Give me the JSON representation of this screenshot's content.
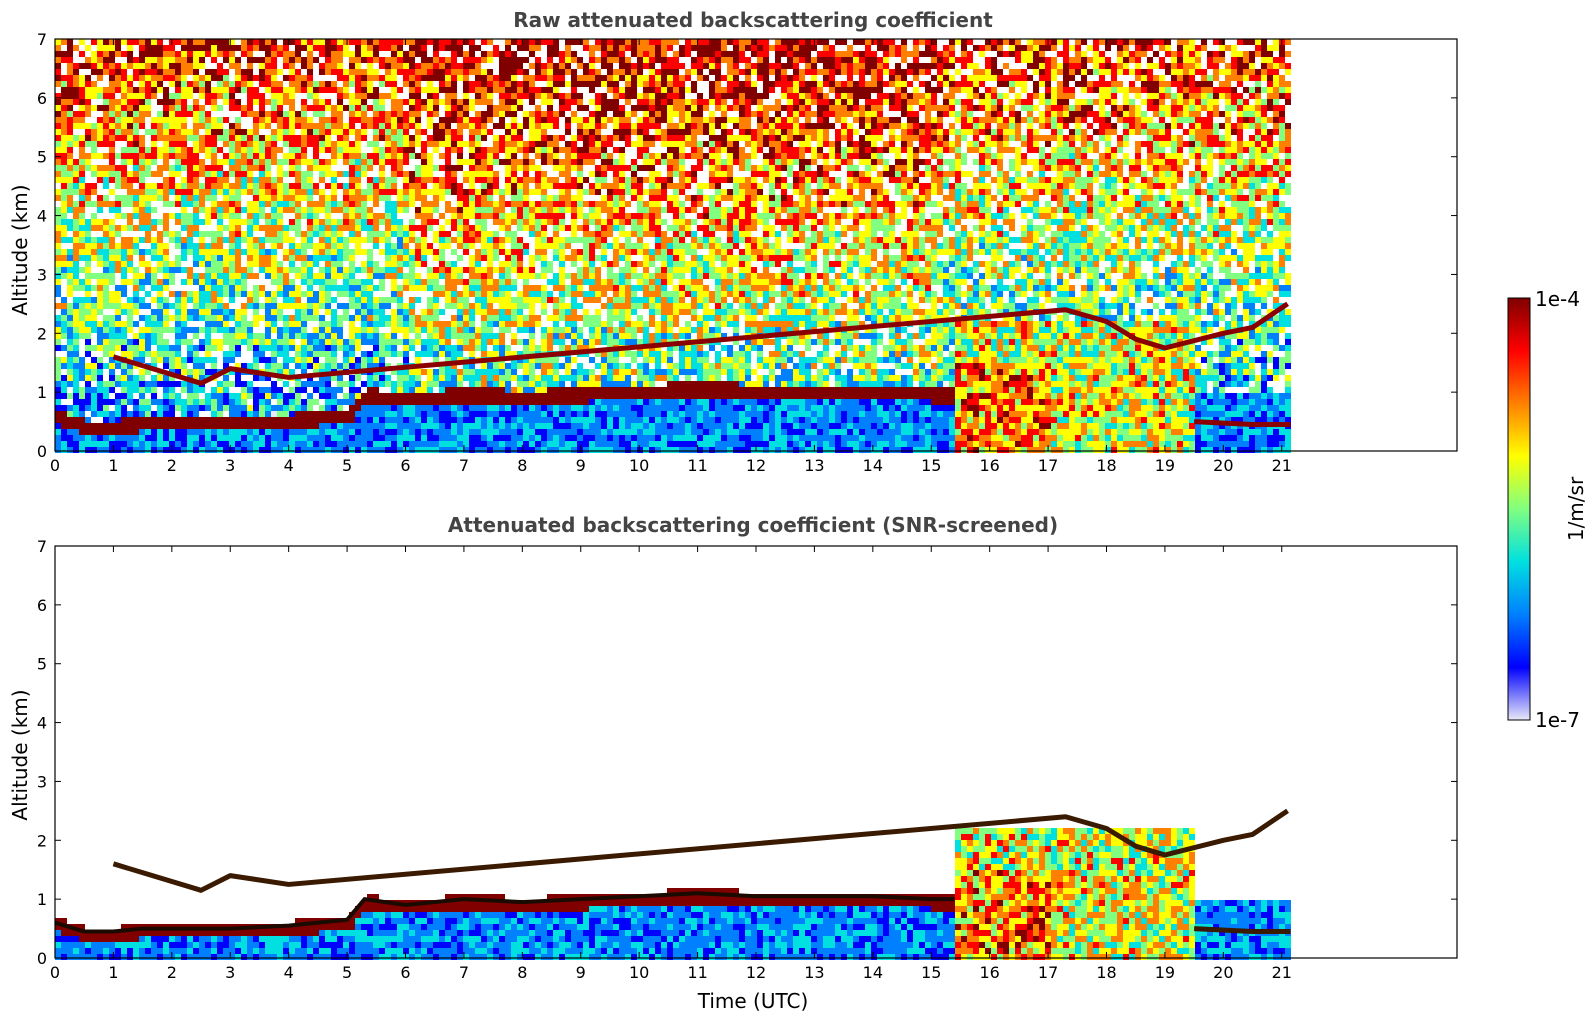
{
  "chart_data": [
    {
      "type": "heatmap",
      "title": "Raw attenuated backscattering coefficient",
      "xlabel": "",
      "ylabel": "Altitude (km)",
      "xlim": [
        0,
        24
      ],
      "ylim": [
        0,
        7
      ],
      "xticks": [
        0,
        1,
        2,
        3,
        4,
        5,
        6,
        7,
        8,
        9,
        10,
        11,
        12,
        13,
        14,
        15,
        16,
        17,
        18,
        19,
        20,
        21
      ],
      "yticks": [
        0,
        1,
        2,
        3,
        4,
        5,
        6,
        7
      ],
      "data_end_time": 21.15,
      "grid": false,
      "screened": false,
      "features": {
        "cloud_layer": [
          [
            0,
            0.6
          ],
          [
            0.5,
            0.45
          ],
          [
            1.0,
            0.45
          ],
          [
            1.5,
            0.5
          ],
          [
            2.0,
            0.5
          ],
          [
            2.5,
            0.5
          ],
          [
            3.0,
            0.5
          ],
          [
            4.0,
            0.55
          ],
          [
            5.0,
            0.65
          ],
          [
            5.3,
            1.0
          ],
          [
            6.0,
            0.9
          ],
          [
            7.0,
            1.0
          ],
          [
            8.0,
            0.95
          ],
          [
            9.0,
            1.0
          ],
          [
            10.0,
            1.05
          ],
          [
            11.0,
            1.1
          ],
          [
            12.0,
            1.05
          ],
          [
            13.0,
            1.05
          ],
          [
            14.0,
            1.05
          ],
          [
            15.0,
            1.0
          ],
          [
            15.4,
            1.0
          ]
        ],
        "upper_layers": [
          [
            1.0,
            1.6
          ],
          [
            2.5,
            1.15
          ],
          [
            3.0,
            1.4
          ],
          [
            4.0,
            1.25
          ],
          [
            17.3,
            2.4
          ],
          [
            18.0,
            2.2
          ],
          [
            18.5,
            1.9
          ],
          [
            19.0,
            1.75
          ],
          [
            20.0,
            2.0
          ],
          [
            20.5,
            2.1
          ],
          [
            21.1,
            2.5
          ]
        ],
        "low_layer_late": [
          [
            19.5,
            0.5
          ],
          [
            20.5,
            0.45
          ],
          [
            21.15,
            0.45
          ]
        ]
      }
    },
    {
      "type": "heatmap",
      "title": "Attenuated backscattering coefficient (SNR-screened)",
      "xlabel": "Time (UTC)",
      "ylabel": "Altitude (km)",
      "xlim": [
        0,
        24
      ],
      "ylim": [
        0,
        7
      ],
      "xticks": [
        0,
        1,
        2,
        3,
        4,
        5,
        6,
        7,
        8,
        9,
        10,
        11,
        12,
        13,
        14,
        15,
        16,
        17,
        18,
        19,
        20,
        21
      ],
      "yticks": [
        0,
        1,
        2,
        3,
        4,
        5,
        6,
        7
      ],
      "data_end_time": 21.15,
      "grid": false,
      "screened": true
    }
  ],
  "colorbar": {
    "label": "1/m/sr",
    "max_label": "1e-4",
    "min_label": "1e-7",
    "scale": "log",
    "range": [
      1e-07,
      0.0001
    ],
    "colormap": [
      "#e8e8f8",
      "#0000ff",
      "#0080ff",
      "#00e0e0",
      "#80ff80",
      "#ffff00",
      "#ff8000",
      "#ff0000",
      "#800000"
    ]
  }
}
